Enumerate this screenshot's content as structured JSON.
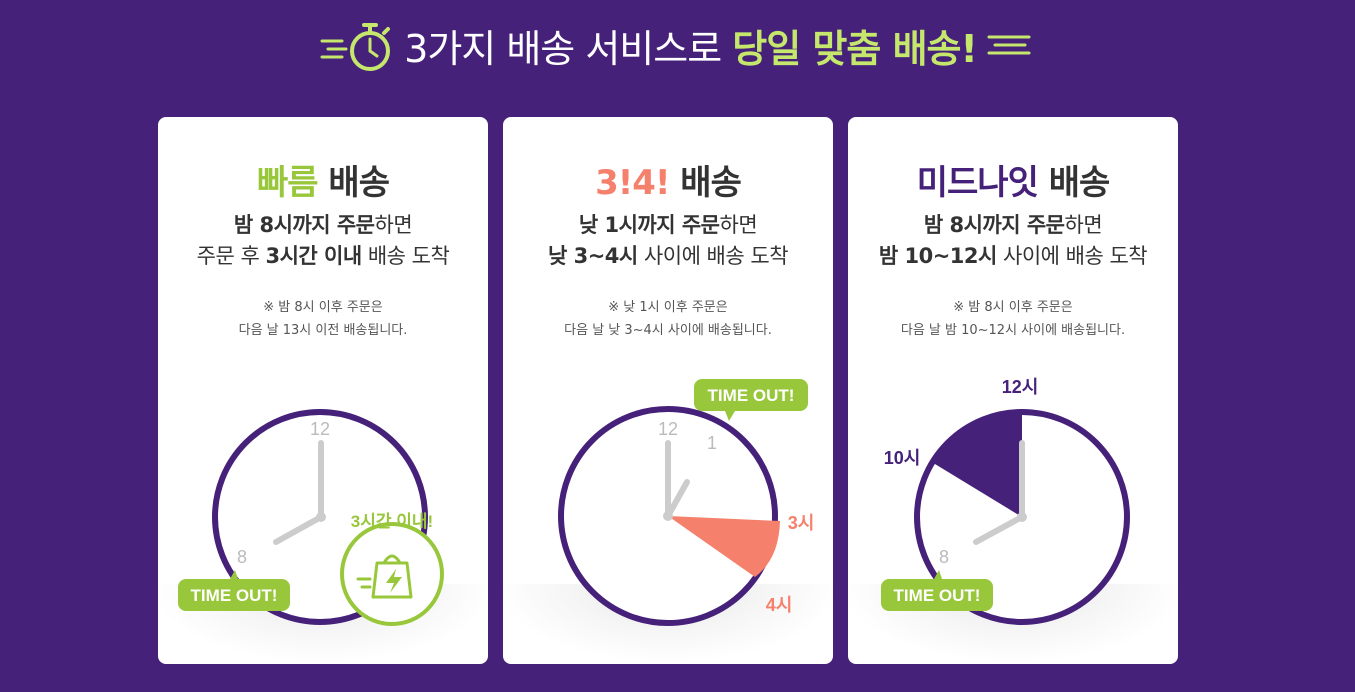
{
  "header": {
    "title_prefix": "3가지 배송 서비스로 ",
    "title_highlight": "당일 맞춤 배송!"
  },
  "colors": {
    "background": "#46217a",
    "green": "#98c73b",
    "coral": "#f5806b",
    "purple": "#46217a",
    "clock_hand": "#cccccc"
  },
  "cards": [
    {
      "title_accent": "빠름",
      "title_rest": " 배송",
      "desc1_bold": "밤 8시까지 주문",
      "desc1_rest": "하면",
      "desc2_pre": "주문 후 ",
      "desc2_bold": "3시간 이내",
      "desc2_rest": " 배송 도착",
      "note1": "※ 밤 8시 이후 주문은",
      "note2": "다음 날 13시 이전 배송됩니다.",
      "clock_12": "12",
      "clock_8": "8",
      "badge": "TIME OUT!",
      "stamp": "3시간 이내!"
    },
    {
      "title_accent": "3!4!",
      "title_rest": " 배송",
      "desc1_bold": "낮 1시까지 주문",
      "desc1_rest": "하면",
      "desc2_bold": "낮 3~4시",
      "desc2_rest": " 사이에 배송 도착",
      "note1": "※ 낮 1시 이후 주문은",
      "note2": "다음 날 낮 3~4시 사이에 배송됩니다.",
      "clock_12": "12",
      "clock_1": "1",
      "label_3": "3시",
      "label_4": "4시",
      "badge": "TIME OUT!"
    },
    {
      "title_accent": "미드나잇",
      "title_rest": " 배송",
      "desc1_bold": "밤 8시까지 주문",
      "desc1_rest": "하면",
      "desc2_bold": "밤 10~12시",
      "desc2_rest": " 사이에 배송 도착",
      "note1": "※ 밤 8시 이후 주문은",
      "note2": "다음 날 밤 10~12시 사이에 배송됩니다.",
      "clock_8": "8",
      "label_12": "12시",
      "label_10": "10시",
      "badge": "TIME OUT!"
    }
  ]
}
